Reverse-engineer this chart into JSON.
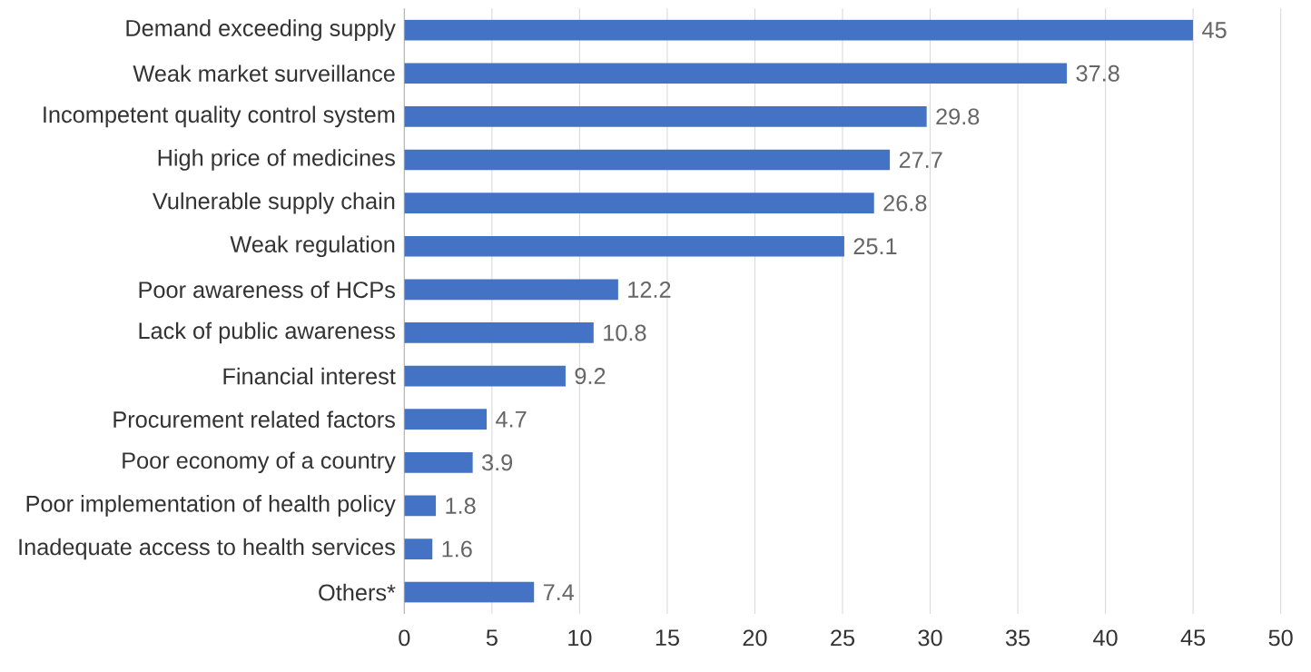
{
  "chart_data": {
    "type": "bar",
    "orientation": "horizontal",
    "categories": [
      "Demand exceeding supply",
      "Weak market surveillance",
      "Incompetent quality control system",
      "High price of medicines",
      "Vulnerable supply chain",
      "Weak regulation",
      "Poor awareness of HCPs",
      "Lack of public awareness",
      "Financial interest",
      "Procurement related factors",
      "Poor economy of a country",
      "Poor implementation of health policy",
      "Inadequate access to health services",
      "Others*"
    ],
    "values": [
      45,
      37.8,
      29.8,
      27.7,
      26.8,
      25.1,
      12.2,
      10.8,
      9.2,
      4.7,
      3.9,
      1.8,
      1.6,
      7.4
    ],
    "color": "#4472c4",
    "data_labels": true,
    "xlim": [
      0,
      50
    ],
    "xticks": [
      0,
      5,
      10,
      15,
      20,
      25,
      30,
      35,
      40,
      45,
      50
    ],
    "grid": "x"
  }
}
